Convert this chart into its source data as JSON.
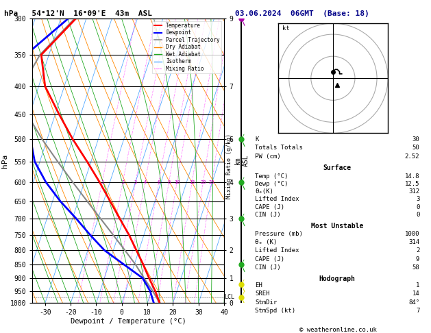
{
  "title_left": "hPa   54°12'N  16°09'E  43m  ASL",
  "title_right": "03.06.2024  06GMT  (Base: 18)",
  "xlabel": "Dewpoint / Temperature (°C)",
  "ylabel_left": "hPa",
  "temp_line": [
    [
      1000,
      14.8
    ],
    [
      950,
      11.5
    ],
    [
      900,
      7.5
    ],
    [
      850,
      3.5
    ],
    [
      800,
      -1.0
    ],
    [
      750,
      -5.8
    ],
    [
      700,
      -11.5
    ],
    [
      650,
      -17.5
    ],
    [
      600,
      -24.0
    ],
    [
      550,
      -31.5
    ],
    [
      500,
      -40.0
    ],
    [
      450,
      -48.5
    ],
    [
      400,
      -57.5
    ],
    [
      350,
      -63.0
    ],
    [
      300,
      -54.0
    ]
  ],
  "dewp_line": [
    [
      1000,
      12.5
    ],
    [
      950,
      9.5
    ],
    [
      900,
      5.0
    ],
    [
      850,
      -4.0
    ],
    [
      800,
      -13.5
    ],
    [
      750,
      -21.0
    ],
    [
      700,
      -28.5
    ],
    [
      650,
      -37.0
    ],
    [
      600,
      -45.0
    ],
    [
      550,
      -52.0
    ],
    [
      500,
      -56.5
    ],
    [
      450,
      -61.5
    ],
    [
      400,
      -67.0
    ],
    [
      350,
      -69.0
    ],
    [
      300,
      -57.0
    ]
  ],
  "parcel_line": [
    [
      1000,
      14.8
    ],
    [
      950,
      10.5
    ],
    [
      900,
      5.5
    ],
    [
      850,
      0.5
    ],
    [
      800,
      -5.5
    ],
    [
      750,
      -12.0
    ],
    [
      700,
      -19.0
    ],
    [
      650,
      -26.5
    ],
    [
      600,
      -34.5
    ],
    [
      550,
      -43.0
    ],
    [
      500,
      -52.0
    ],
    [
      450,
      -61.0
    ],
    [
      400,
      -66.5
    ],
    [
      350,
      -63.5
    ],
    [
      300,
      -54.5
    ]
  ],
  "lcl_pressure": 975,
  "mixing_ratio_vals": [
    1,
    2,
    3,
    4,
    6,
    8,
    10,
    15,
    20,
    25
  ],
  "sounding_data": {
    "K": 30,
    "Totals_Totals": 50,
    "PW_cm": 2.52,
    "Surface_Temp": 14.8,
    "Surface_Dewp": 12.5,
    "Surface_theta_e": 312,
    "Surface_LI": 3,
    "Surface_CAPE": 0,
    "Surface_CIN": 0,
    "MU_Pressure": 1000,
    "MU_theta_e": 314,
    "MU_LI": 2,
    "MU_CAPE": 9,
    "MU_CIN": 58,
    "EH": 1,
    "SREH": 14,
    "StmDir": 84,
    "StmSpd": 7
  },
  "wind_stem_dots": [
    {
      "pressure": 975,
      "color": "#dddd00",
      "u": -2,
      "v": 3
    },
    {
      "pressure": 925,
      "color": "#dddd00",
      "u": -1,
      "v": 4
    },
    {
      "pressure": 850,
      "color": "#22aa22",
      "u": 0,
      "v": 5
    },
    {
      "pressure": 700,
      "color": "#22aa22",
      "u": 1,
      "v": 4
    },
    {
      "pressure": 600,
      "color": "#22aa22",
      "u": 2,
      "v": 3
    },
    {
      "pressure": 500,
      "color": "#22aa22",
      "u": 1,
      "v": 5
    },
    {
      "pressure": 300,
      "color": "#aa00aa",
      "u": 0,
      "v": 7
    }
  ]
}
